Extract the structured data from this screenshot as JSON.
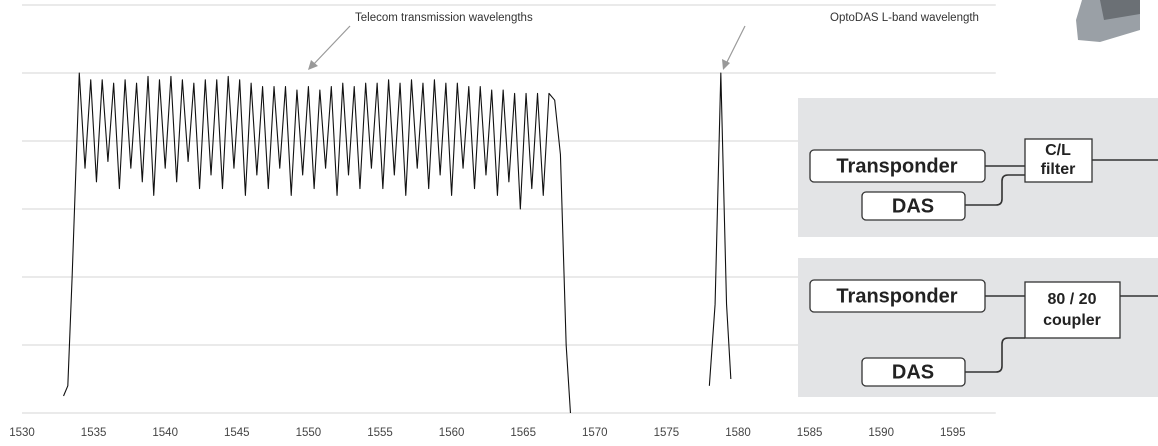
{
  "chart_data": {
    "type": "line",
    "annotations": [
      "Telecom transmission wavelengths",
      "OptoDAS L-band wavelength"
    ],
    "x": [
      1532.9,
      1533.2,
      1533.5,
      1534.0,
      1534.4,
      1534.8,
      1535.2,
      1535.6,
      1536.0,
      1536.4,
      1536.8,
      1537.2,
      1537.6,
      1538.0,
      1538.4,
      1538.8,
      1539.2,
      1539.6,
      1540.0,
      1540.4,
      1540.8,
      1541.2,
      1541.6,
      1542.0,
      1542.4,
      1542.8,
      1543.2,
      1543.6,
      1544.0,
      1544.4,
      1544.8,
      1545.2,
      1545.6,
      1546.0,
      1546.4,
      1546.8,
      1547.2,
      1547.6,
      1548.0,
      1548.4,
      1548.8,
      1549.2,
      1549.6,
      1550.0,
      1550.4,
      1550.8,
      1551.2,
      1551.6,
      1552.0,
      1552.4,
      1552.8,
      1553.2,
      1553.6,
      1554.0,
      1554.4,
      1554.8,
      1555.2,
      1555.6,
      1556.0,
      1556.4,
      1556.8,
      1557.2,
      1557.6,
      1558.0,
      1558.4,
      1558.8,
      1559.2,
      1559.6,
      1560.0,
      1560.4,
      1560.8,
      1561.2,
      1561.6,
      1562.0,
      1562.4,
      1562.8,
      1563.2,
      1563.6,
      1564.0,
      1564.4,
      1564.8,
      1565.2,
      1565.6,
      1566.0,
      1566.4,
      1566.8,
      1567.2,
      1567.6,
      1568.0,
      1568.3,
      1573.0,
      1578.0,
      1578.4,
      1578.8,
      1579.2,
      1579.5
    ],
    "series": [
      {
        "color": "#111111",
        "values": [
          0.25,
          0.4,
          2.0,
          5.0,
          3.6,
          4.9,
          3.4,
          4.9,
          3.7,
          4.85,
          3.3,
          4.9,
          3.6,
          4.85,
          3.4,
          4.95,
          3.2,
          4.9,
          3.6,
          4.95,
          3.4,
          4.9,
          3.7,
          4.85,
          3.3,
          4.9,
          3.5,
          4.9,
          3.3,
          4.95,
          3.6,
          4.9,
          3.2,
          4.85,
          3.5,
          4.8,
          3.3,
          4.8,
          3.6,
          4.8,
          3.2,
          4.75,
          3.5,
          4.8,
          3.3,
          4.75,
          3.6,
          4.8,
          3.2,
          4.85,
          3.5,
          4.8,
          3.3,
          4.85,
          3.6,
          4.85,
          3.3,
          4.9,
          3.5,
          4.85,
          3.2,
          4.9,
          3.6,
          4.85,
          3.3,
          4.9,
          3.5,
          4.85,
          3.2,
          4.85,
          3.6,
          4.8,
          3.3,
          4.8,
          3.5,
          4.75,
          3.2,
          4.75,
          3.4,
          4.7,
          3.0,
          4.7,
          3.3,
          4.7,
          3.2,
          4.7,
          4.6,
          3.8,
          1.0,
          0,
          null,
          0.4,
          1.6,
          5.0,
          1.6,
          0.5
        ]
      }
    ],
    "xlim": [
      1530,
      1598
    ],
    "xticks": [
      1530,
      1535,
      1540,
      1545,
      1550,
      1555,
      1560,
      1565,
      1570,
      1575,
      1580,
      1585,
      1590,
      1595
    ],
    "ylim": [
      0,
      6
    ],
    "yticks": [
      0,
      1,
      2,
      3,
      4,
      5,
      6
    ],
    "grid": true,
    "ytick_labels": false
  },
  "diagram": {
    "panels": [
      {
        "transponder": "Transponder",
        "device": [
          "C/L",
          "filter"
        ],
        "das": "DAS"
      },
      {
        "transponder": "Transponder",
        "device": [
          "80 / 20",
          "coupler"
        ],
        "das": "DAS"
      }
    ]
  }
}
